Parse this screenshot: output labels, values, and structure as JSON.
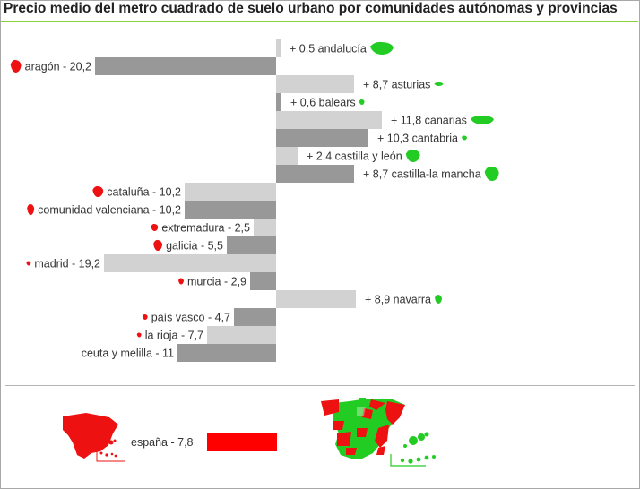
{
  "title": "Precio medio del metro cuadrado de suelo urbano por comunidades autónomas y provincias",
  "colors": {
    "bar_light": "#d2d2d2",
    "bar_dark": "#989898",
    "positive_map": "#22cc22",
    "negative_map": "#ee1111",
    "total_bar": "#ff0000",
    "title_rule": "#8ed03c"
  },
  "chart_data": {
    "type": "bar",
    "orientation": "horizontal",
    "title": "Precio medio del metro cuadrado de suelo urbano por comunidades autónomas y provincias",
    "xlim": [
      -20.2,
      11.8
    ],
    "items": [
      {
        "name": "andalucía",
        "value": 0.5,
        "label": "+ 0,5 andalucía",
        "shade": "light"
      },
      {
        "name": "aragón",
        "value": -20.2,
        "label": "aragón - 20,2",
        "shade": "dark"
      },
      {
        "name": "asturias",
        "value": 8.7,
        "label": "+ 8,7 asturias",
        "shade": "light"
      },
      {
        "name": "balears",
        "value": 0.6,
        "label": "+ 0,6 balears",
        "shade": "dark"
      },
      {
        "name": "canarias",
        "value": 11.8,
        "label": "+ 11,8 canarias",
        "shade": "light"
      },
      {
        "name": "cantabria",
        "value": 10.3,
        "label": "+ 10,3 cantabria",
        "shade": "dark"
      },
      {
        "name": "castilla y león",
        "value": 2.4,
        "label": "+ 2,4 castilla y león",
        "shade": "light"
      },
      {
        "name": "castilla-la mancha",
        "value": 8.7,
        "label": "+ 8,7 castilla-la mancha",
        "shade": "dark"
      },
      {
        "name": "cataluña",
        "value": -10.2,
        "label": "cataluña - 10,2",
        "shade": "light"
      },
      {
        "name": "comunidad valenciana",
        "value": -10.2,
        "label": "comunidad valenciana - 10,2",
        "shade": "dark"
      },
      {
        "name": "extremadura",
        "value": -2.5,
        "label": "extremadura - 2,5",
        "shade": "light"
      },
      {
        "name": "galicia",
        "value": -5.5,
        "label": "galicia - 5,5",
        "shade": "dark"
      },
      {
        "name": "madrid",
        "value": -19.2,
        "label": "madrid - 19,2",
        "shade": "light"
      },
      {
        "name": "murcia",
        "value": -2.9,
        "label": "murcia - 2,9",
        "shade": "dark"
      },
      {
        "name": "navarra",
        "value": 8.9,
        "label": "+ 8,9 navarra",
        "shade": "light"
      },
      {
        "name": "país vasco",
        "value": -4.7,
        "label": "país vasco - 4,7",
        "shade": "dark"
      },
      {
        "name": "la rioja",
        "value": -7.7,
        "label": "la rioja - 7,7",
        "shade": "light"
      },
      {
        "name": "ceuta y melilla",
        "value": -11,
        "label": "ceuta y melilla - 11",
        "shade": "dark"
      }
    ],
    "total": {
      "name": "españa",
      "value": -7.8,
      "label": "españa - 7,8"
    }
  },
  "icons": {
    "region": "region-silhouette-icon",
    "spain": "spain-map-icon",
    "regions_map": "regions-map-icon"
  }
}
